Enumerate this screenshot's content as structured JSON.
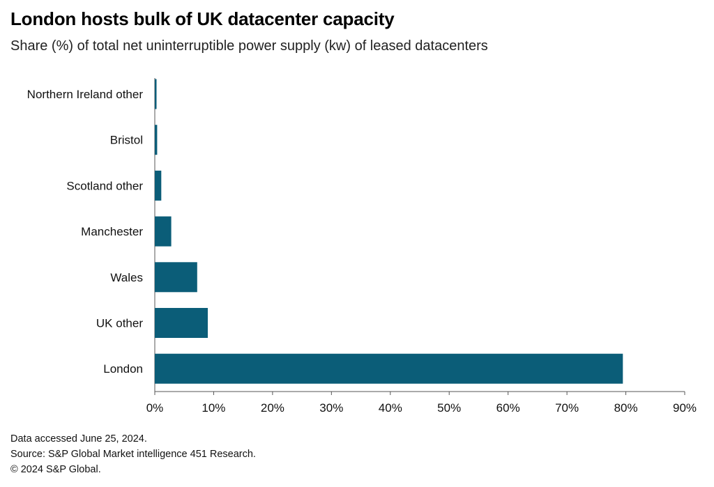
{
  "chart_data": {
    "type": "bar",
    "orientation": "horizontal",
    "title": "London hosts bulk of UK datacenter capacity",
    "subtitle": "Share (%) of total net uninterruptible power supply (kw) of leased datacenters",
    "categories": [
      "Northern Ireland other",
      "Bristol",
      "Scotland other",
      "Manchester",
      "Wales",
      "UK other",
      "London"
    ],
    "values": [
      0.3,
      0.4,
      1.1,
      2.8,
      7.2,
      9.0,
      79.5
    ],
    "xlim": [
      0,
      90
    ],
    "xticks": [
      0,
      10,
      20,
      30,
      40,
      50,
      60,
      70,
      80,
      90
    ],
    "xtick_labels": [
      "0%",
      "10%",
      "20%",
      "30%",
      "40%",
      "50%",
      "60%",
      "70%",
      "80%",
      "90%"
    ],
    "xlabel": "",
    "ylabel": "",
    "grid": false,
    "legend": "none",
    "bar_color": "#0b5d78"
  },
  "footer": {
    "line1": "Data accessed June 25, 2024.",
    "line2": "Source: S&P Global Market intelligence 451 Research.",
    "line3": "© 2024 S&P Global."
  }
}
